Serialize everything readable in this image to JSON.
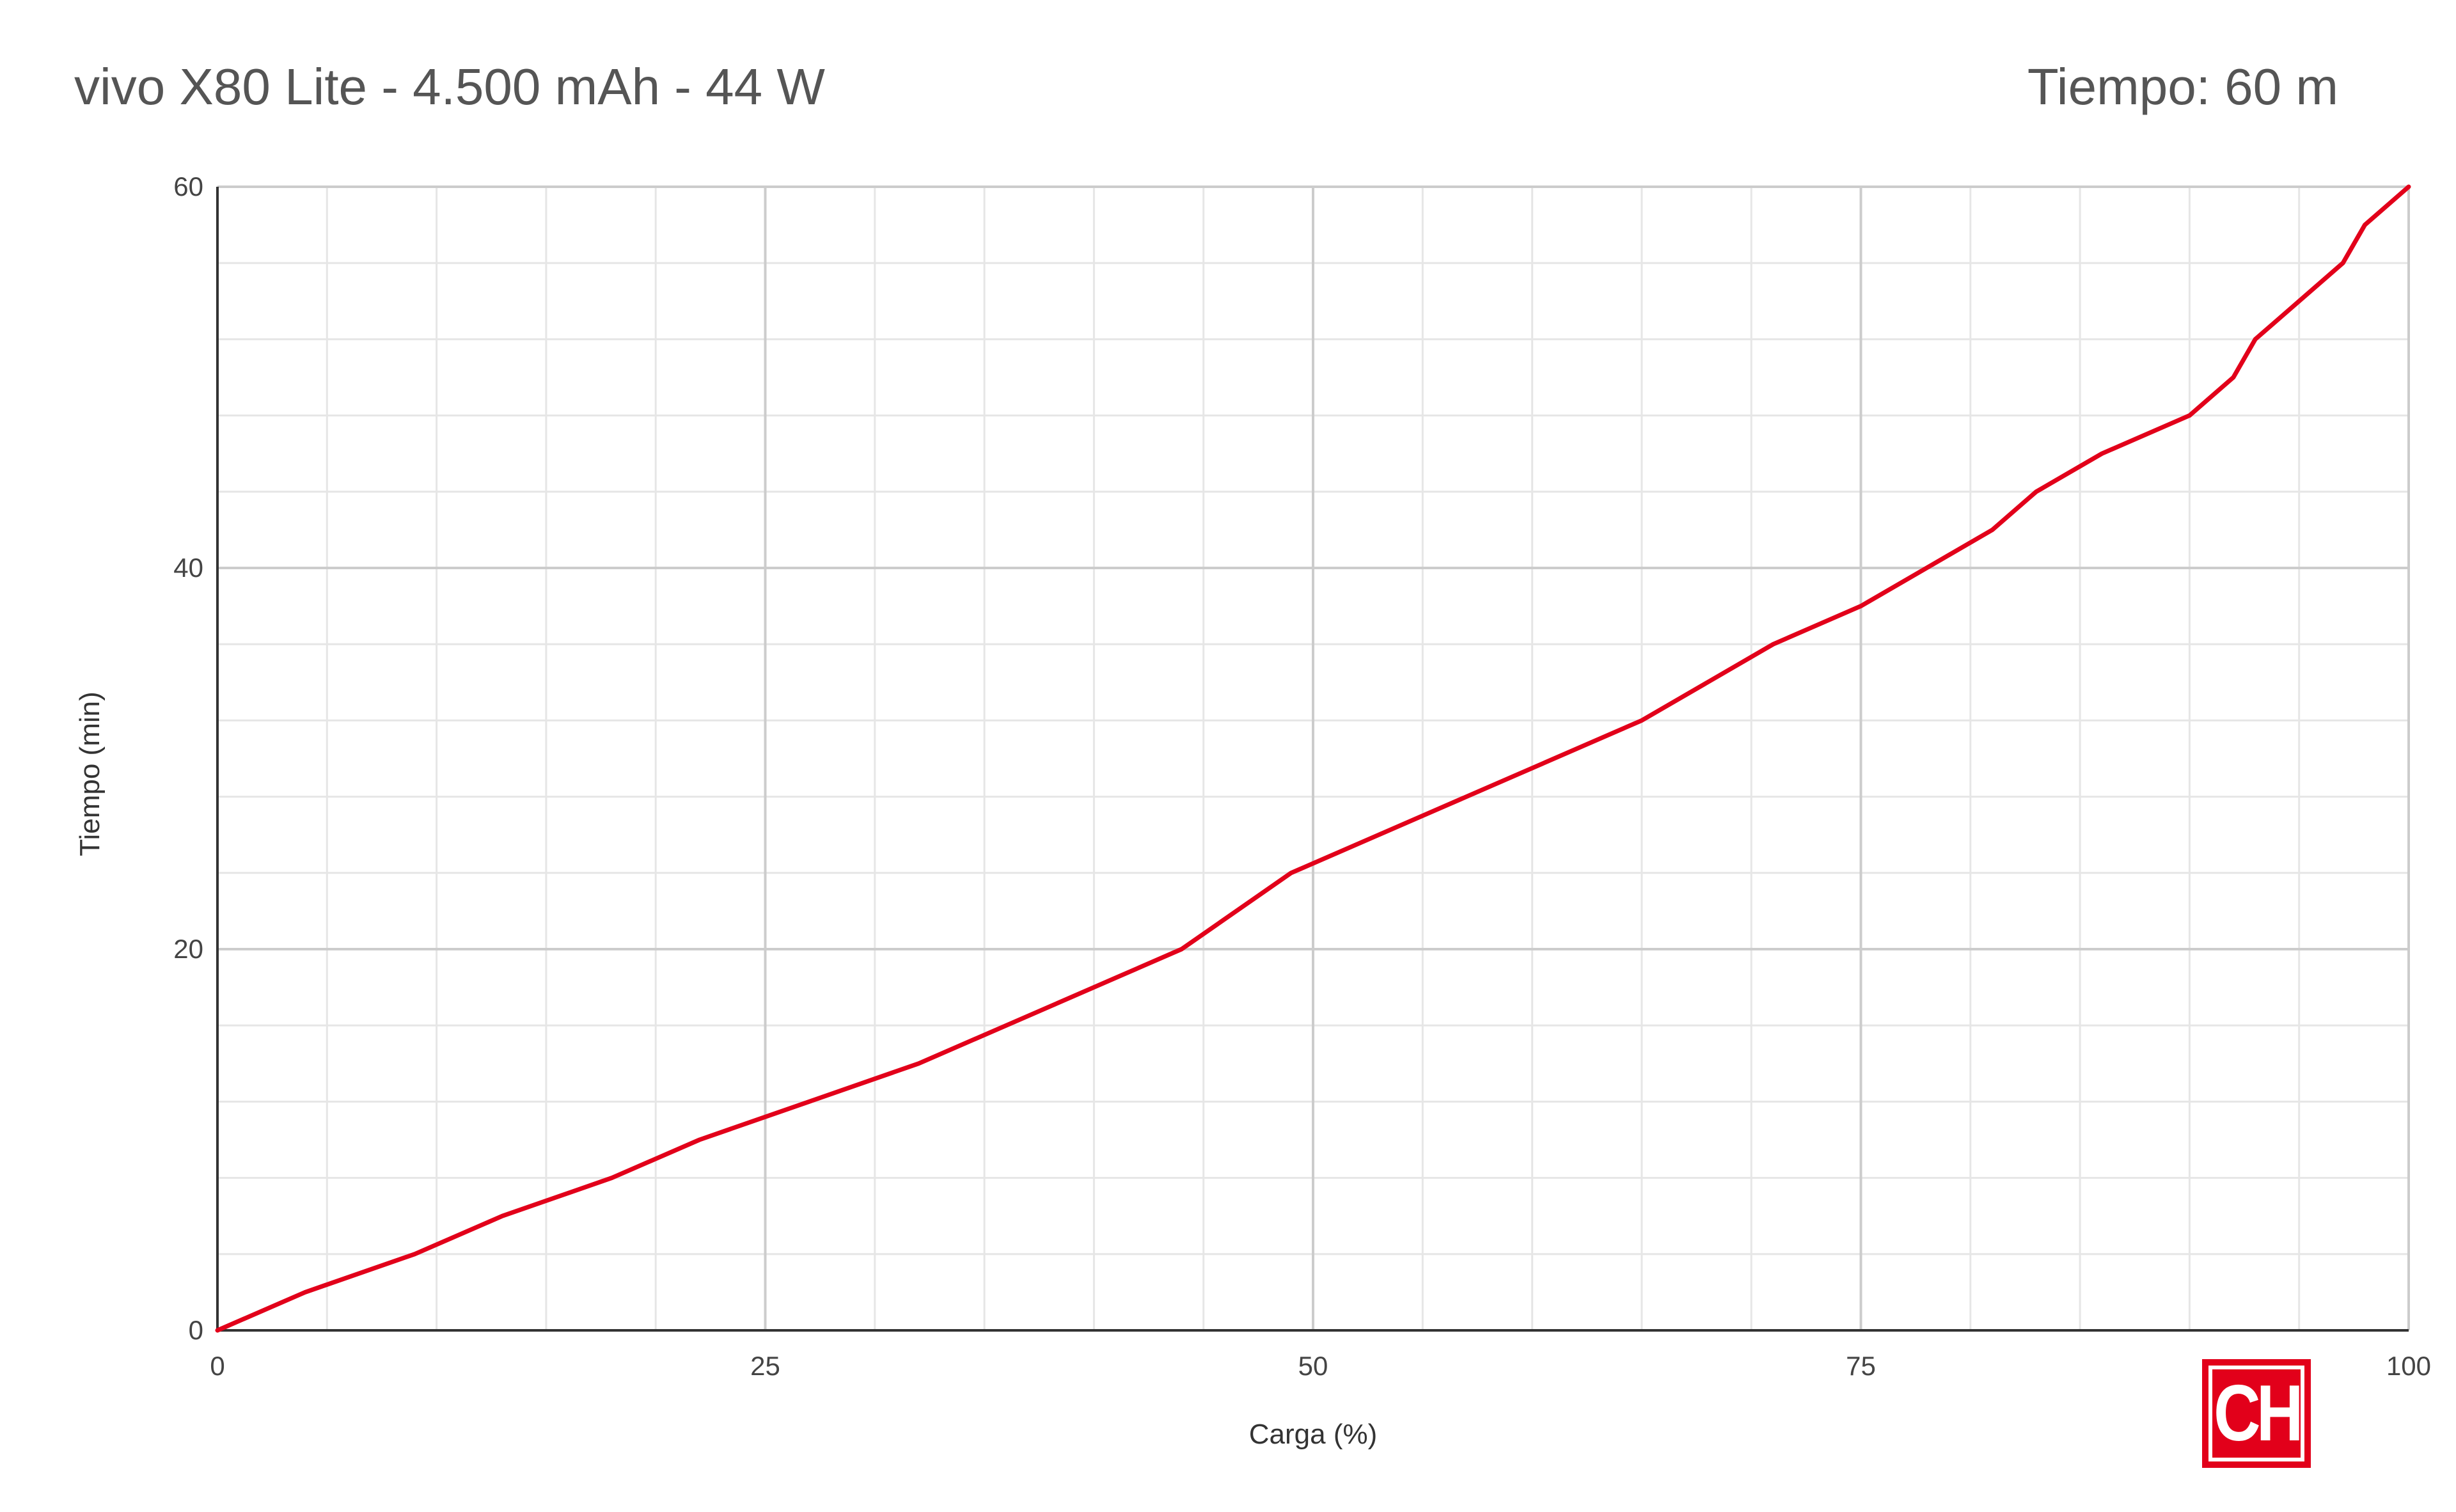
{
  "header": {
    "title": "vivo X80 Lite - 4.500 mAh - 44 W",
    "right_title": "Tiempo: 60 m"
  },
  "logo": {
    "text": "CH",
    "color": "#e2001a"
  },
  "colors": {
    "line": "#e2001a",
    "grid_major": "#cccccc",
    "grid_minor": "#e6e6e6",
    "axis": "#333333",
    "text": "#444444"
  },
  "chart_data": {
    "type": "line",
    "title": "vivo X80 Lite - 4.500 mAh - 44 W",
    "subtitle": "Tiempo: 60 m",
    "xlabel": "Carga (%)",
    "ylabel": "Tiempo (min)",
    "xlim": [
      0,
      100
    ],
    "ylim": [
      0,
      60
    ],
    "xticks": [
      0,
      25,
      50,
      75,
      100
    ],
    "yticks": [
      0,
      20,
      40,
      60
    ],
    "grid": true,
    "legend": "none",
    "series": [
      {
        "x": [
          0,
          4,
          9,
          13,
          18,
          22,
          27,
          32,
          38,
          44,
          49,
          53,
          59,
          65,
          71,
          75,
          81,
          83,
          86,
          90,
          92,
          93,
          97,
          98,
          100
        ],
        "y": [
          0,
          2,
          4,
          6,
          8,
          10,
          12,
          14,
          17,
          20,
          24,
          26,
          29,
          32,
          36,
          38,
          42,
          44,
          46,
          48,
          50,
          52,
          56,
          58,
          60
        ]
      }
    ]
  }
}
